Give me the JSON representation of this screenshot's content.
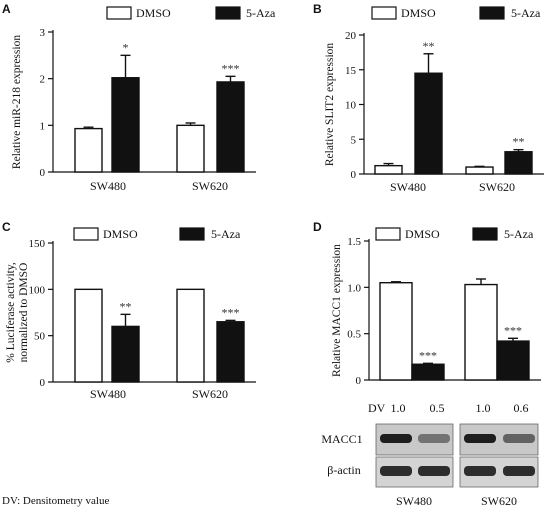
{
  "chart_data": [
    {
      "type": "bar",
      "panel_letter": "A",
      "categories": [
        "SW480",
        "SW620"
      ],
      "series": [
        {
          "name": "DMSO",
          "values": [
            0.93,
            1.0
          ],
          "errors": [
            0.03,
            0.05
          ]
        },
        {
          "name": "5-Aza",
          "values": [
            2.02,
            1.93
          ],
          "errors": [
            0.48,
            0.12
          ]
        }
      ],
      "significance": [
        "*",
        "***"
      ],
      "ylabel": "Relative miR-218 expression",
      "ylim": [
        0,
        3
      ],
      "yticks": [
        "0",
        "1",
        "2",
        "3"
      ],
      "legend_position": "top"
    },
    {
      "type": "bar",
      "panel_letter": "B",
      "categories": [
        "SW480",
        "SW620"
      ],
      "series": [
        {
          "name": "DMSO",
          "values": [
            1.2,
            1.0
          ],
          "errors": [
            0.3,
            0.1
          ]
        },
        {
          "name": "5-Aza",
          "values": [
            14.5,
            3.2
          ],
          "errors": [
            2.8,
            0.3
          ]
        }
      ],
      "significance": [
        "**",
        "**"
      ],
      "ylabel": "Relative SLIT2 expression",
      "ylim": [
        0,
        20
      ],
      "yticks": [
        "0",
        "5",
        "10",
        "15",
        "20"
      ],
      "legend_position": "top"
    },
    {
      "type": "bar",
      "panel_letter": "C",
      "categories": [
        "SW480",
        "SW620"
      ],
      "series": [
        {
          "name": "DMSO",
          "values": [
            100,
            100
          ],
          "errors": [
            0,
            0
          ]
        },
        {
          "name": "5-Aza",
          "values": [
            60,
            65
          ],
          "errors": [
            13,
            1.5
          ]
        }
      ],
      "significance": [
        "**",
        "***"
      ],
      "ylabel_lines": [
        "% Luciferase activity,",
        "normalized to DMSO"
      ],
      "ylim": [
        0,
        150
      ],
      "yticks": [
        "0",
        "50",
        "100",
        "150"
      ],
      "legend_position": "top"
    },
    {
      "type": "bar",
      "panel_letter": "D",
      "categories": [
        "SW480",
        "SW620"
      ],
      "series": [
        {
          "name": "DMSO",
          "values": [
            1.05,
            1.03
          ],
          "errors": [
            0.01,
            0.06
          ]
        },
        {
          "name": "5-Aza",
          "values": [
            0.17,
            0.42
          ],
          "errors": [
            0.01,
            0.03
          ]
        }
      ],
      "significance": [
        "***",
        "***"
      ],
      "ylabel": "Relative MACC1 expression",
      "ylim": [
        0,
        1.5
      ],
      "yticks": [
        "0",
        "0.5",
        "1.0",
        "1.5"
      ],
      "legend_position": "top",
      "blot": {
        "dv_label": "DV",
        "dv_values": [
          "1.0",
          "0.5",
          "1.0",
          "0.6"
        ],
        "bands": [
          "MACC1",
          "β-actin"
        ],
        "lanes": [
          "SW480",
          "SW620"
        ]
      }
    }
  ],
  "footnote": "DV: Densitometry value"
}
